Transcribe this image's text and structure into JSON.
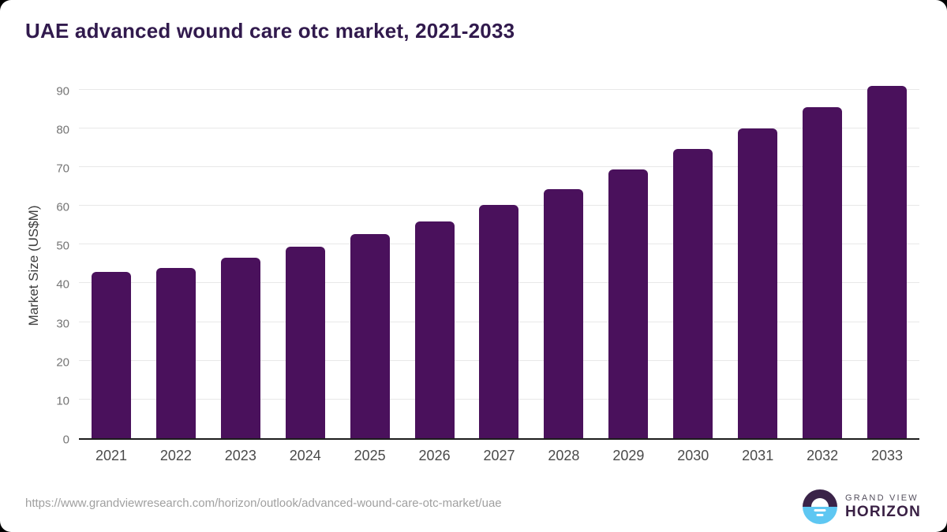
{
  "title": "UAE advanced wound care otc market, 2021-2033",
  "chart_data": {
    "type": "bar",
    "categories": [
      "2021",
      "2022",
      "2023",
      "2024",
      "2025",
      "2026",
      "2027",
      "2028",
      "2029",
      "2030",
      "2031",
      "2032",
      "2033"
    ],
    "values": [
      43.0,
      44.0,
      46.6,
      49.5,
      52.8,
      56.0,
      60.2,
      64.4,
      69.5,
      74.6,
      80.0,
      85.4,
      91.0
    ],
    "title": "UAE advanced wound care otc market, 2021-2033",
    "xlabel": "",
    "ylabel": "Market Size (US$M)",
    "ylim": [
      0,
      92.6
    ],
    "yticks": [
      0,
      10,
      20,
      30,
      40,
      50,
      60,
      70,
      80,
      90
    ],
    "grid": true,
    "legend": "none",
    "bar_color": "#4a115c"
  },
  "footer": {
    "source_url": "https://www.grandviewresearch.com/horizon/outlook/advanced-wound-care-otc-market/uae",
    "logo": {
      "line1": "GRAND VIEW",
      "line2": "HORIZON"
    }
  },
  "colors": {
    "title": "#311a4d",
    "bar": "#4a115c",
    "axis_line": "#1c1c1c",
    "gridline": "#e8e8e8",
    "y_tick_text": "#757575",
    "x_tick_text": "#4a4a4a",
    "url_text": "#a0a0a0",
    "logo_purple_dark": "#3a2348",
    "logo_blue": "#5ec7f2",
    "logo_text_gray": "#55505e",
    "logo_text_purple": "#3a2145"
  }
}
